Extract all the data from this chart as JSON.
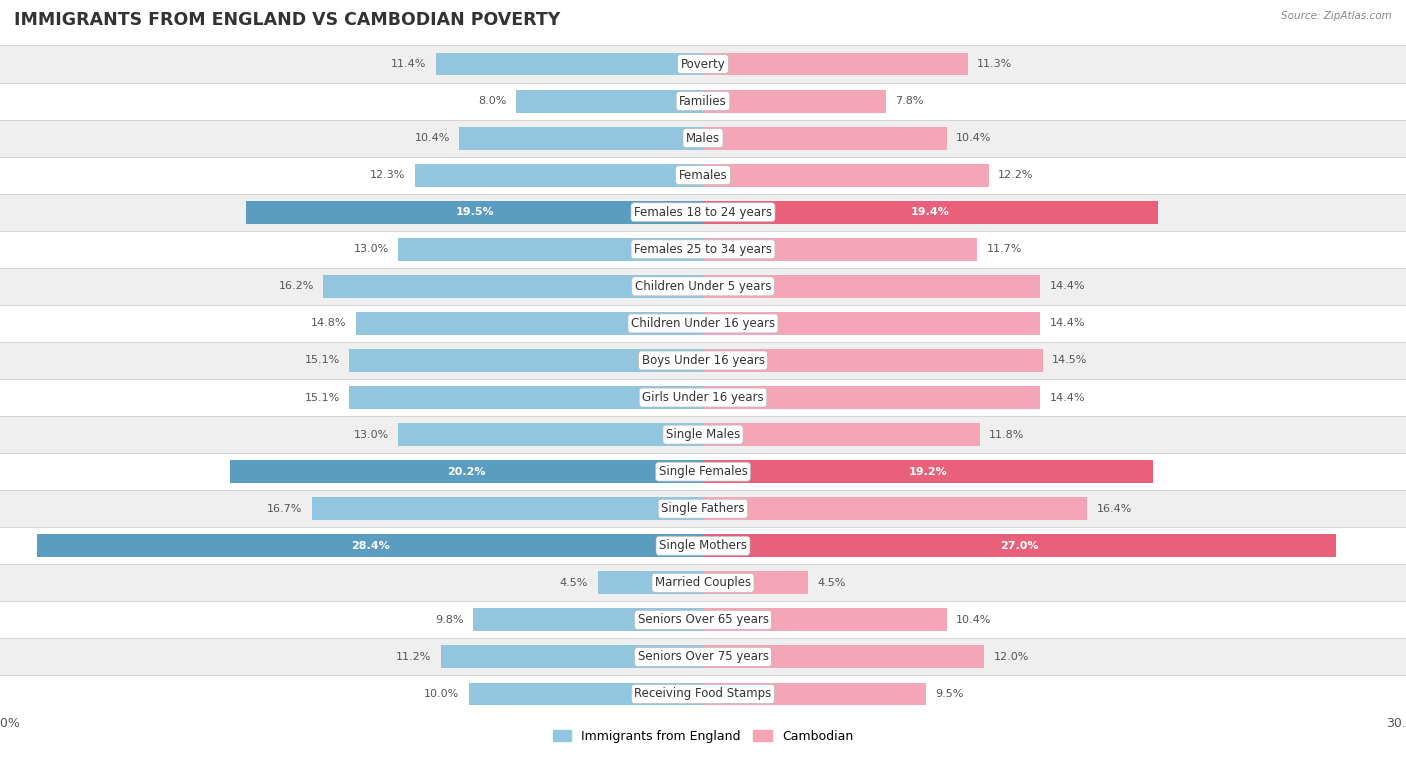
{
  "title": "IMMIGRANTS FROM ENGLAND VS CAMBODIAN POVERTY",
  "source": "Source: ZipAtlas.com",
  "categories": [
    "Poverty",
    "Families",
    "Males",
    "Females",
    "Females 18 to 24 years",
    "Females 25 to 34 years",
    "Children Under 5 years",
    "Children Under 16 years",
    "Boys Under 16 years",
    "Girls Under 16 years",
    "Single Males",
    "Single Females",
    "Single Fathers",
    "Single Mothers",
    "Married Couples",
    "Seniors Over 65 years",
    "Seniors Over 75 years",
    "Receiving Food Stamps"
  ],
  "england_values": [
    11.4,
    8.0,
    10.4,
    12.3,
    19.5,
    13.0,
    16.2,
    14.8,
    15.1,
    15.1,
    13.0,
    20.2,
    16.7,
    28.4,
    4.5,
    9.8,
    11.2,
    10.0
  ],
  "cambodian_values": [
    11.3,
    7.8,
    10.4,
    12.2,
    19.4,
    11.7,
    14.4,
    14.4,
    14.5,
    14.4,
    11.8,
    19.2,
    16.4,
    27.0,
    4.5,
    10.4,
    12.0,
    9.5
  ],
  "england_color": "#92c5de",
  "cambodian_color": "#f4a6b8",
  "england_highlight_color": "#5b9dc0",
  "cambodian_highlight_color": "#e8607a",
  "highlight_rows": [
    4,
    11,
    13
  ],
  "axis_limit": 30.0,
  "bar_height": 0.62,
  "bg_color": "#ffffff",
  "row_even_color": "#efefef",
  "row_odd_color": "#ffffff",
  "label_fontsize": 8.5,
  "value_fontsize": 8.0,
  "title_fontsize": 12.5
}
